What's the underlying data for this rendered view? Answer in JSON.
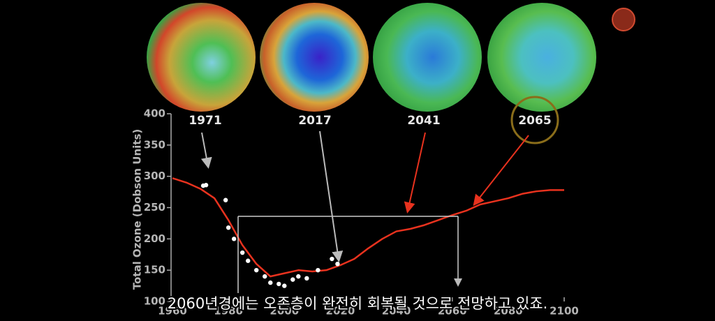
{
  "chart_data": {
    "type": "line",
    "ylabel": "Total Ozone (Dobson Units)",
    "xlim": [
      1960,
      2100
    ],
    "xticks": [
      1960,
      1980,
      2000,
      2020,
      2040,
      2060,
      2080,
      2100
    ],
    "ylim": [
      100,
      400
    ],
    "yticks": [
      100,
      150,
      200,
      250,
      300,
      350,
      400
    ],
    "annotations": [
      "1971",
      "2017",
      "2041",
      "2065"
    ],
    "subtitle": "2060년경에는 오존층이 완전히 회복될 것으로 전망하고 있죠.",
    "series": [
      {
        "color": "#e8321e",
        "style": "line",
        "x": [
          1960,
          1965,
          1970,
          1975,
          1980,
          1985,
          1990,
          1995,
          2000,
          2005,
          2010,
          2015,
          2020,
          2025,
          2030,
          2035,
          2040,
          2045,
          2050,
          2055,
          2060,
          2065,
          2070,
          2075,
          2080,
          2085,
          2090,
          2095,
          2100
        ],
        "values": [
          297,
          290,
          280,
          265,
          230,
          190,
          160,
          140,
          145,
          150,
          148,
          150,
          158,
          168,
          185,
          200,
          212,
          216,
          222,
          230,
          238,
          245,
          255,
          260,
          265,
          272,
          276,
          278,
          278
        ]
      },
      {
        "color": "#ffffff",
        "style": "points",
        "x": [
          1971,
          1972,
          1979,
          1980,
          1982,
          1985,
          1987,
          1990,
          1993,
          1995,
          1998,
          2000,
          2003,
          2005,
          2008,
          2012,
          2017,
          2019
        ],
        "values": [
          285,
          286,
          262,
          218,
          200,
          178,
          165,
          150,
          140,
          130,
          128,
          125,
          135,
          140,
          137,
          150,
          168,
          160
        ]
      }
    ]
  }
}
